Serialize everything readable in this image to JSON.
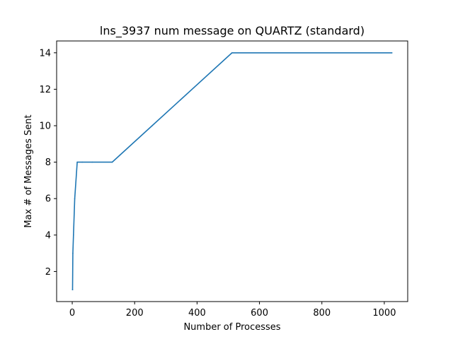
{
  "chart_data": {
    "type": "line",
    "title": "lns_3937 num message on QUARTZ (standard)",
    "xlabel": "Number of Processes",
    "ylabel": "Max # of Messages Sent",
    "xlim": [
      -50,
      1075
    ],
    "ylim": [
      0.35,
      14.65
    ],
    "xticks": [
      0,
      200,
      400,
      600,
      800,
      1000
    ],
    "yticks": [
      2,
      4,
      6,
      8,
      10,
      12,
      14
    ],
    "grid": false,
    "legend": "none",
    "series": [
      {
        "color": "#1f77b4",
        "x": [
          1,
          2,
          4,
          8,
          16,
          32,
          64,
          128,
          256,
          512,
          1024
        ],
        "y": [
          1,
          3,
          4,
          6,
          8,
          8,
          8,
          8,
          10,
          14,
          14
        ]
      }
    ]
  }
}
